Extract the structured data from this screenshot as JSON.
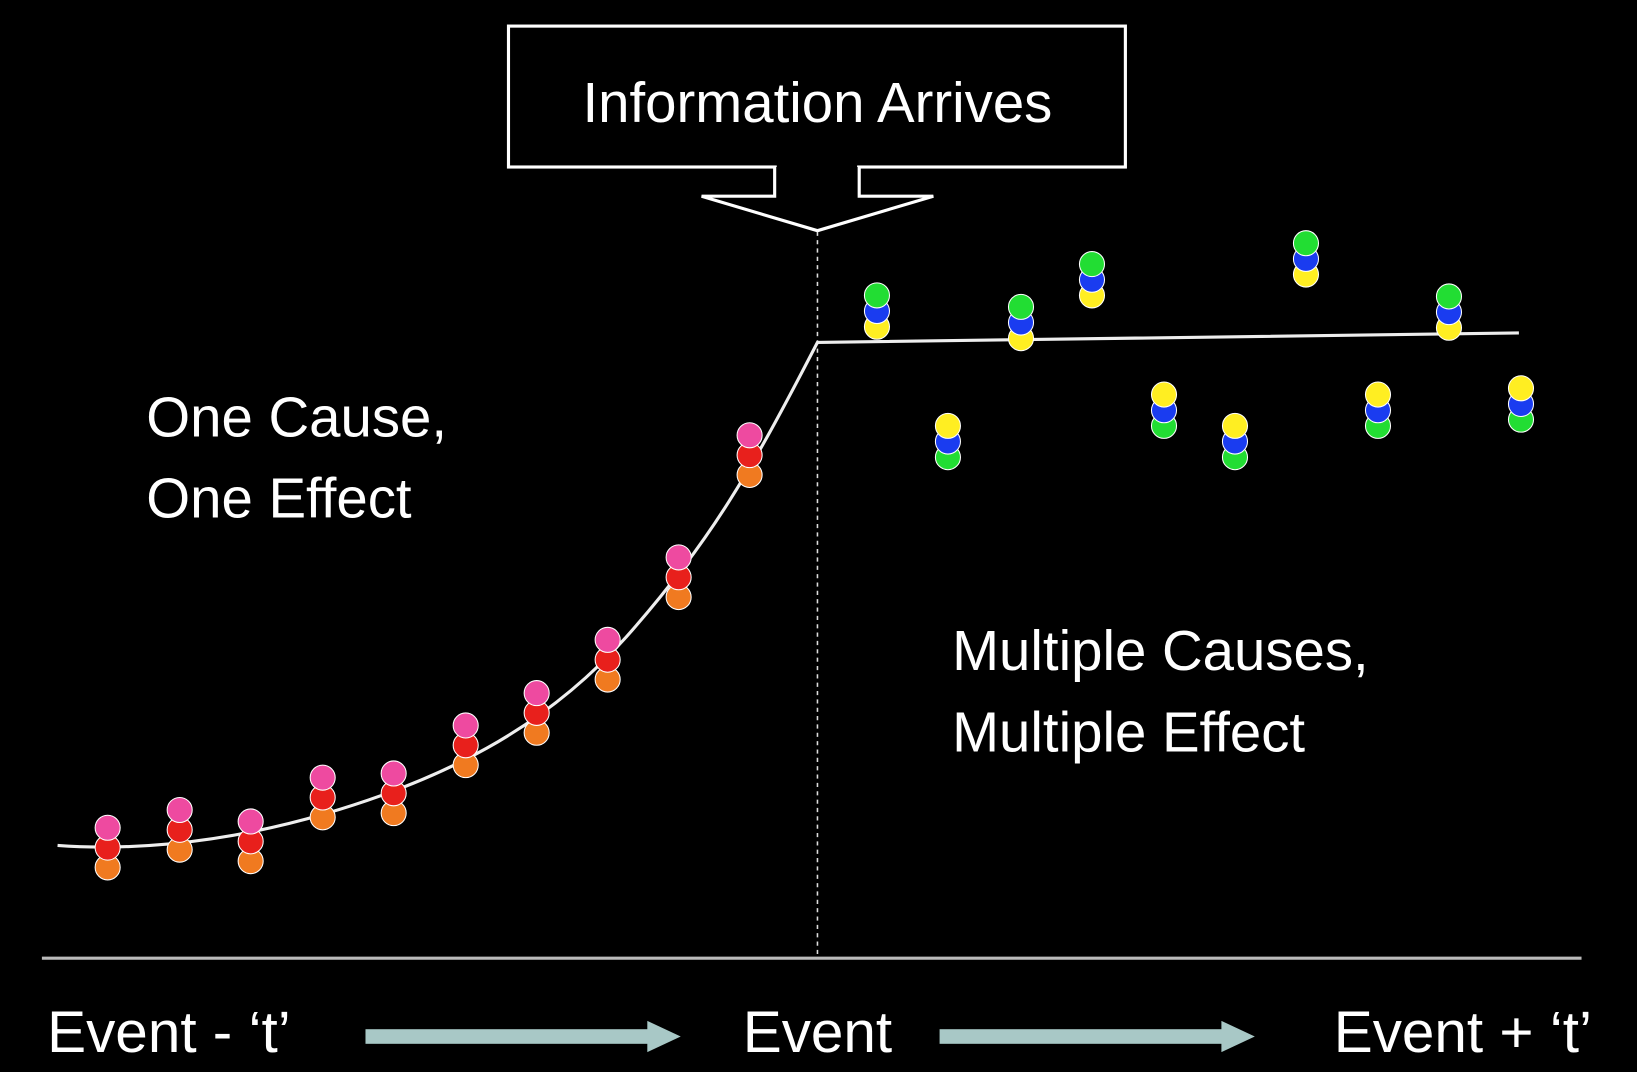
{
  "callout": "Information Arrives",
  "left_label": [
    "One Cause,",
    "One Effect"
  ],
  "right_label": [
    "Multiple Causes,",
    "Multiple Effect"
  ],
  "timeline": [
    "Event - ‘t’",
    "Event",
    "Event + ‘t’"
  ]
}
